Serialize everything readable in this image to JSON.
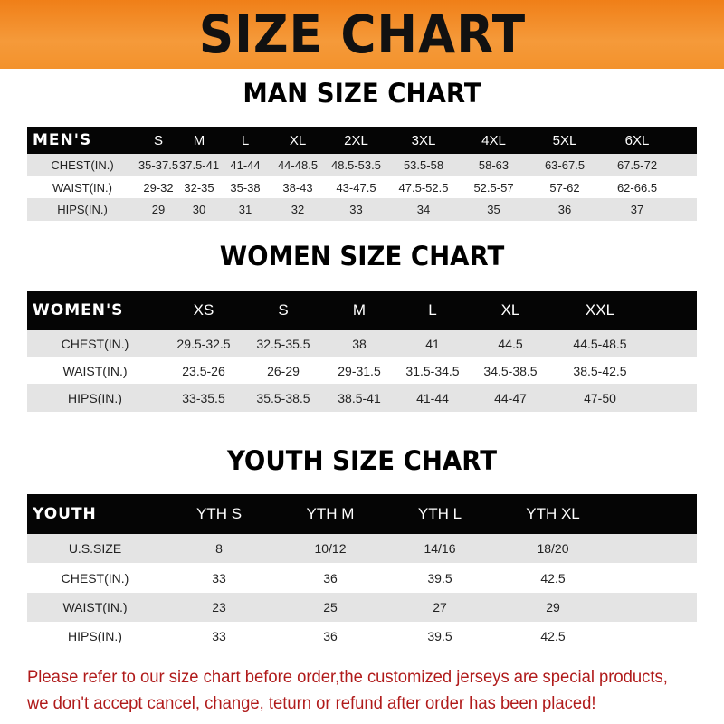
{
  "title": "SIZE CHART",
  "men": {
    "title": "MAN SIZE CHART",
    "header": [
      "MEN'S",
      "S",
      "M",
      "L",
      "XL",
      "2XL",
      "3XL",
      "4XL",
      "5XL",
      "6XL"
    ],
    "rows": [
      [
        "CHEST(IN.)",
        "35-37.5",
        "37.5-41",
        "41-44",
        "44-48.5",
        "48.5-53.5",
        "53.5-58",
        "58-63",
        "63-67.5",
        "67.5-72"
      ],
      [
        "WAIST(IN.)",
        "29-32",
        "32-35",
        "35-38",
        "38-43",
        "43-47.5",
        "47.5-52.5",
        "52.5-57",
        "57-62",
        "62-66.5"
      ],
      [
        "HIPS(IN.)",
        "29",
        "30",
        "31",
        "32",
        "33",
        "34",
        "35",
        "36",
        "37"
      ]
    ]
  },
  "women": {
    "title": "WOMEN SIZE CHART",
    "header": [
      "WOMEN'S",
      "XS",
      "S",
      "M",
      "L",
      "XL",
      "XXL"
    ],
    "rows": [
      [
        "CHEST(IN.)",
        "29.5-32.5",
        "32.5-35.5",
        "38",
        "41",
        "44.5",
        "44.5-48.5"
      ],
      [
        "WAIST(IN.)",
        "23.5-26",
        "26-29",
        "29-31.5",
        "31.5-34.5",
        "34.5-38.5",
        "38.5-42.5"
      ],
      [
        "HIPS(IN.)",
        "33-35.5",
        "35.5-38.5",
        "38.5-41",
        "41-44",
        "44-47",
        "47-50"
      ]
    ]
  },
  "youth": {
    "title": "YOUTH SIZE CHART",
    "header": [
      "YOUTH",
      "YTH S",
      "YTH M",
      "YTH L",
      "YTH XL"
    ],
    "rows": [
      [
        "U.S.SIZE",
        "8",
        "10/12",
        "14/16",
        "18/20"
      ],
      [
        "CHEST(IN.)",
        "33",
        "36",
        "39.5",
        "42.5"
      ],
      [
        "WAIST(IN.)",
        "23",
        "25",
        "27",
        "29"
      ],
      [
        "HIPS(IN.)",
        "33",
        "36",
        "39.5",
        "42.5"
      ]
    ]
  },
  "footer": {
    "line1": "Please refer to our size chart before order,the customized jerseys are special products,",
    "line2": "we don't accept cancel, change, teturn or refund after order has been placed!"
  },
  "colors": {
    "banner": "#f07f18",
    "header_row": "#050505",
    "stripe": "#e4e4e4",
    "notice": "#b01a1a"
  }
}
